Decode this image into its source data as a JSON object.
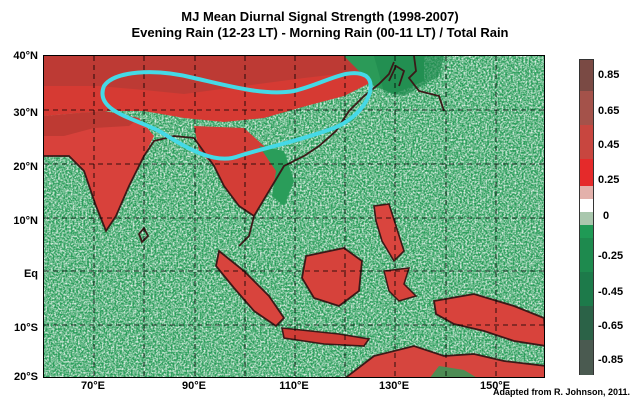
{
  "title_line1": "MJ Mean Diurnal Signal Strength (1998-2007)",
  "title_line2": "Evening Rain (12-23 LT) - Morning Rain (00-11 LT) / Total Rain",
  "lat_labels": [
    "40°N",
    "30°N",
    "20°N",
    "10°N",
    "Eq",
    "10°S",
    "20°S"
  ],
  "lon_labels": [
    "70°E",
    "90°E",
    "110°E",
    "130°E",
    "150°E"
  ],
  "colorbar": {
    "labels": [
      "0.85",
      "0.65",
      "0.45",
      "0.25",
      "0",
      "-0.25",
      "-0.45",
      "-0.65",
      "-0.85"
    ],
    "colors": [
      "#7a4a44",
      "#a4524a",
      "#c8463f",
      "#e52a2a",
      "#e3b1ab",
      "#ffffff",
      "#a9c7ad",
      "#1f9a55",
      "#1e8a4e",
      "#1d7a4a",
      "#2b6247",
      "#4a5a50"
    ]
  },
  "credit": "Adapted from R. Johnson, 2011.",
  "map": {
    "extent_lon": [
      60,
      160
    ],
    "extent_lat": [
      -20,
      40
    ],
    "highlight_color": "#45d9e6",
    "coast_color": "#3a1a18"
  }
}
